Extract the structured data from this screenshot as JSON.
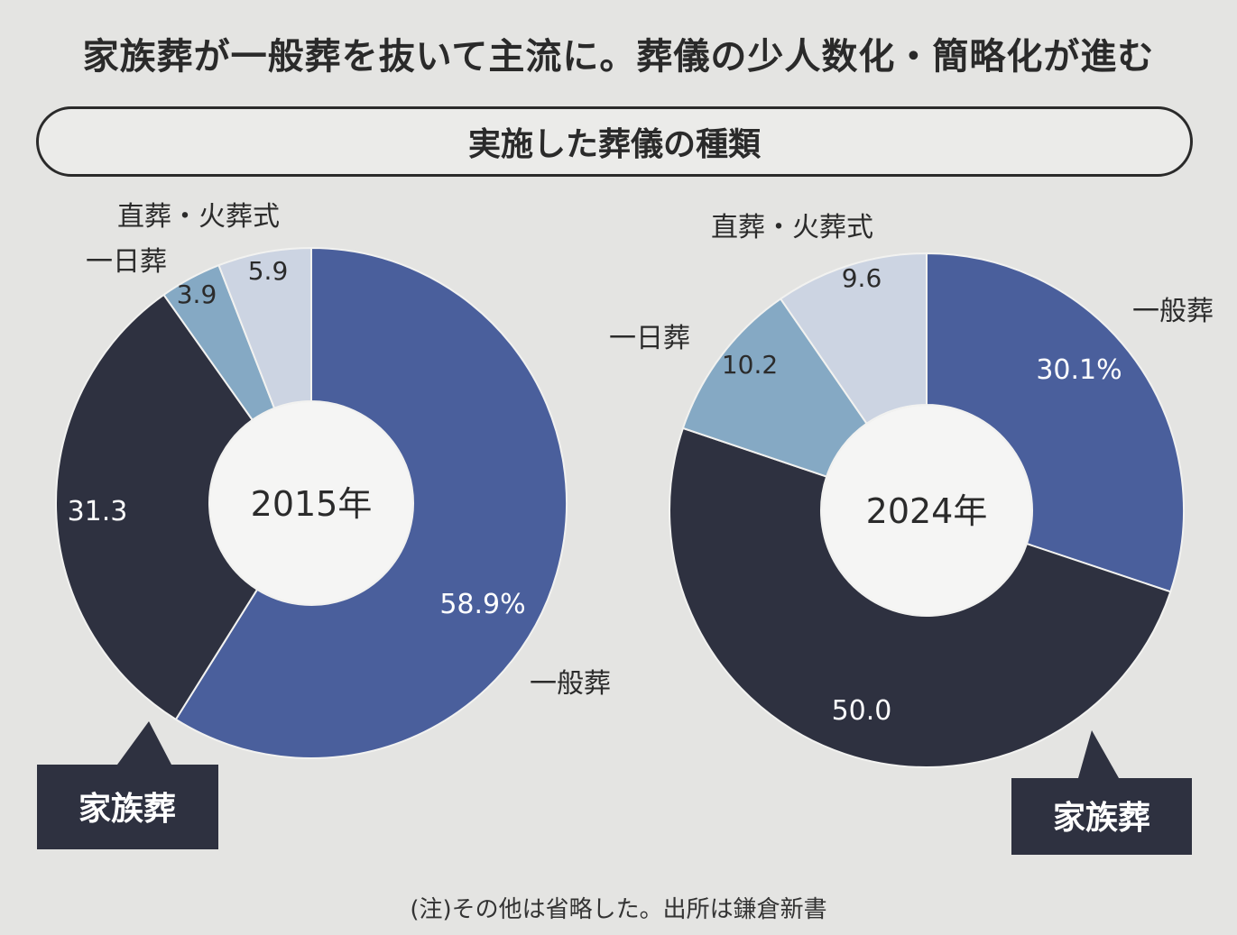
{
  "headline": "家族葬が一般葬を抜いて主流に。葬儀の少人数化・簡略化が進む",
  "subtitle": "実施した葬儀の種類",
  "footnote": "(注)その他は省略した。出所は鎌倉新書",
  "colors": {
    "一般葬": "#4a5f9c",
    "家族葬": "#2e3140",
    "一日葬": "#85a9c4",
    "直葬・火葬式": "#ccd4e2",
    "label_box": "#2e3140"
  },
  "chart_data": [
    {
      "type": "pie",
      "variant": "donut",
      "center_label": "2015年",
      "slices": [
        {
          "name": "一般葬",
          "value": 58.9,
          "value_label": "58.9%"
        },
        {
          "name": "家族葬",
          "value": 31.3,
          "value_label": "31.3"
        },
        {
          "name": "一日葬",
          "value": 3.9,
          "value_label": "3.9"
        },
        {
          "name": "直葬・火葬式",
          "value": 5.9,
          "value_label": "5.9"
        }
      ]
    },
    {
      "type": "pie",
      "variant": "donut",
      "center_label": "2024年",
      "slices": [
        {
          "name": "一般葬",
          "value": 30.1,
          "value_label": "30.1%"
        },
        {
          "name": "家族葬",
          "value": 50.0,
          "value_label": "50.0"
        },
        {
          "name": "一日葬",
          "value": 10.2,
          "value_label": "10.2"
        },
        {
          "name": "直葬・火葬式",
          "value": 9.6,
          "value_label": "9.6"
        }
      ]
    }
  ]
}
